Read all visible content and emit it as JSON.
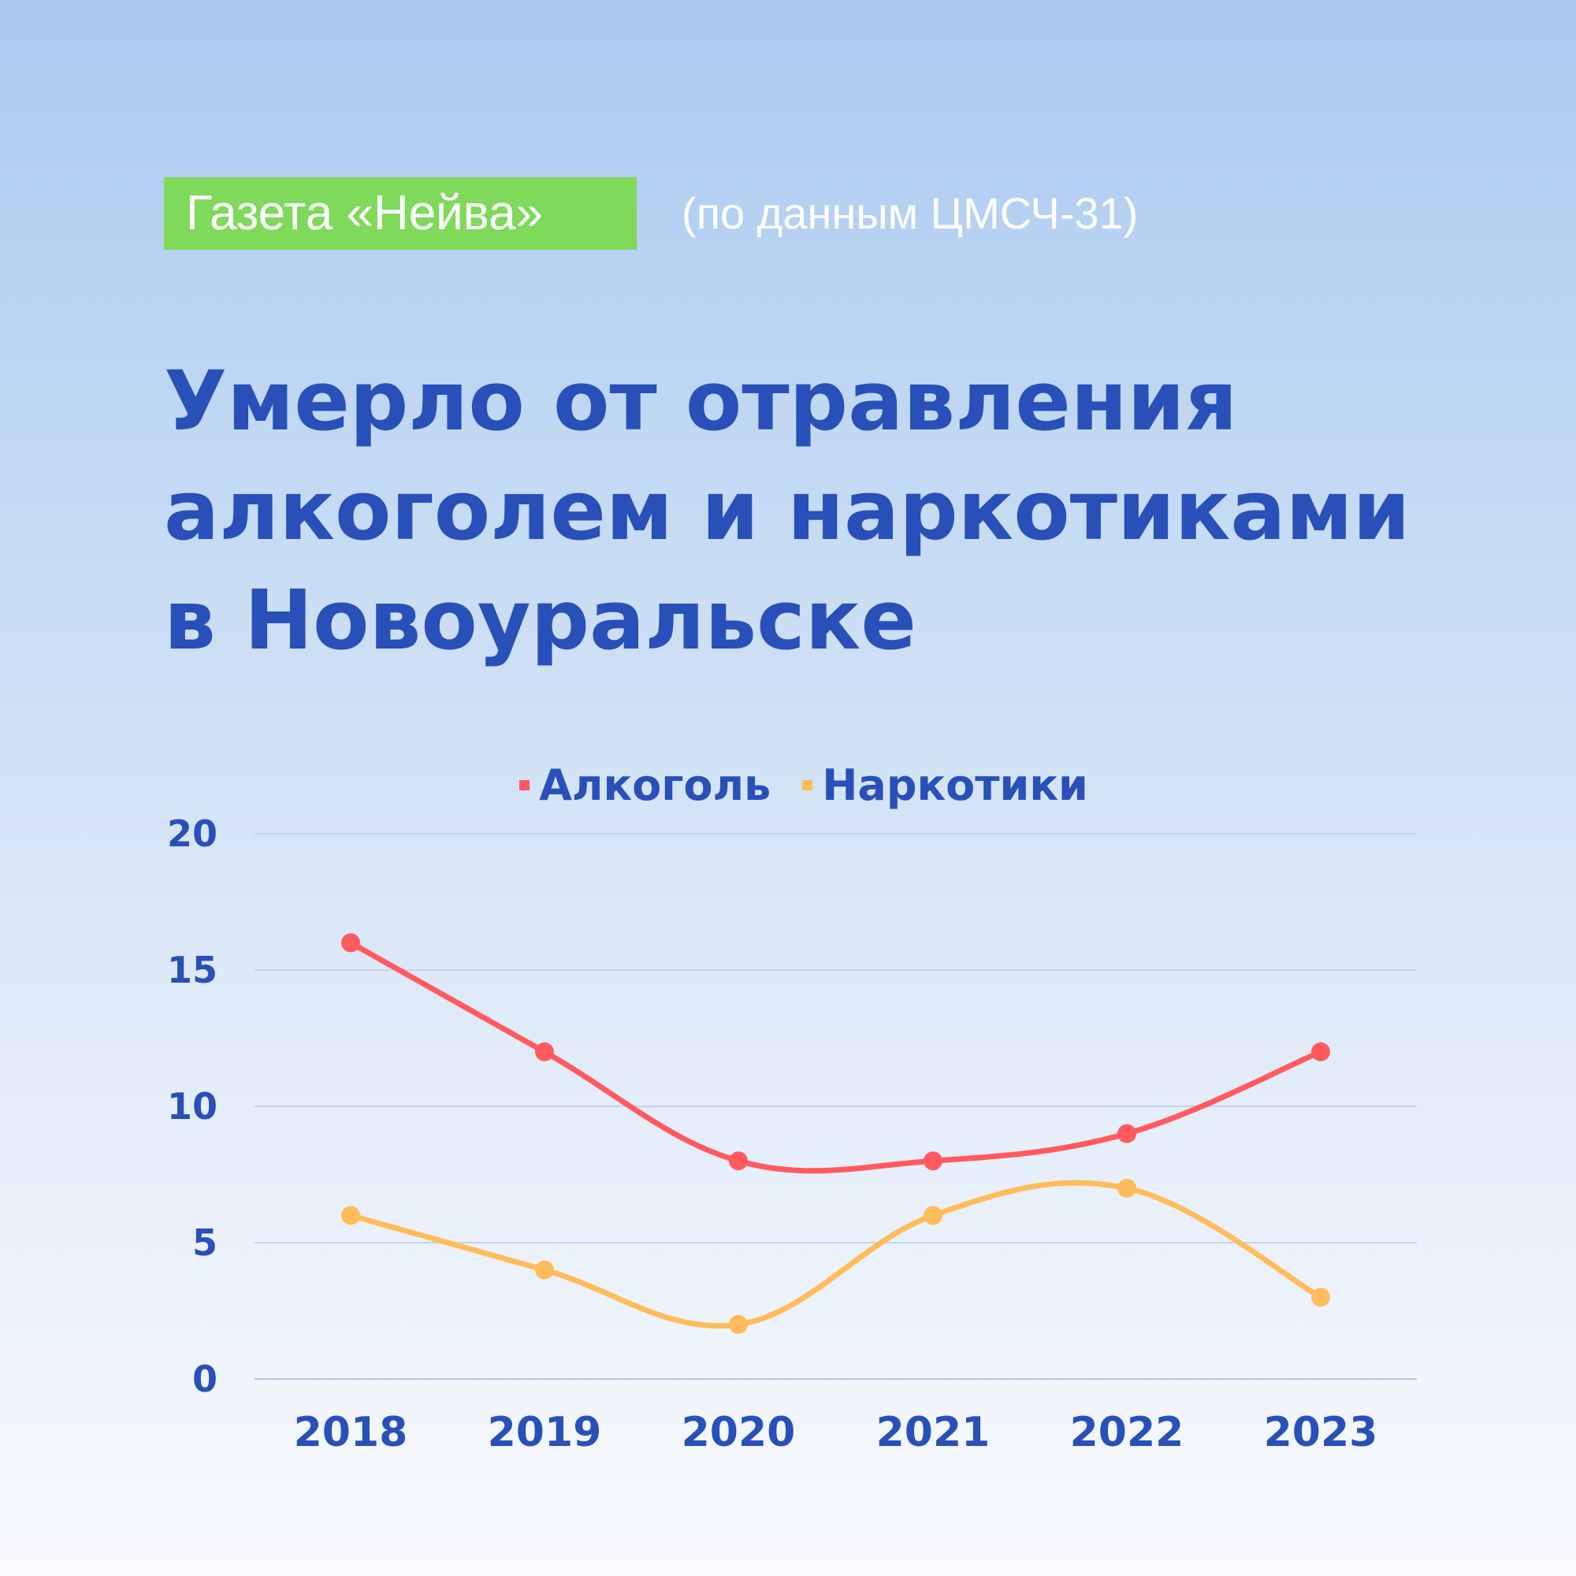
{
  "header": {
    "badge": "Газета «Нейва»",
    "source": "(по данным ЦМСЧ-31)"
  },
  "title": {
    "line1": "Умерло от отравления",
    "line2": "алкоголем и наркотиками",
    "line3": "в Новоуральске"
  },
  "legend": [
    {
      "label": "Алкоголь",
      "color": "#ff5a5f"
    },
    {
      "label": "Наркотики",
      "color": "#ffbc5a"
    }
  ],
  "colors": {
    "accent": "#2850b8",
    "badge": "#7fd95a",
    "grid": "#c3d3ee"
  },
  "chart_data": {
    "type": "line",
    "title": "Умерло от отравления алкоголем и наркотиками в Новоуральске",
    "categories": [
      "2018",
      "2019",
      "2020",
      "2021",
      "2022",
      "2023"
    ],
    "series": [
      {
        "name": "Алкоголь",
        "values": [
          16,
          12,
          8,
          8,
          9,
          12
        ],
        "color": "#ff5a5f"
      },
      {
        "name": "Наркотики",
        "values": [
          6,
          4,
          2,
          6,
          7,
          3
        ],
        "color": "#ffbc5a"
      }
    ],
    "xlabel": "",
    "ylabel": "",
    "ylim": [
      0,
      20
    ],
    "yticks": [
      0,
      5,
      10,
      15,
      20
    ],
    "grid": true,
    "legend_position": "top",
    "smooth": true
  }
}
